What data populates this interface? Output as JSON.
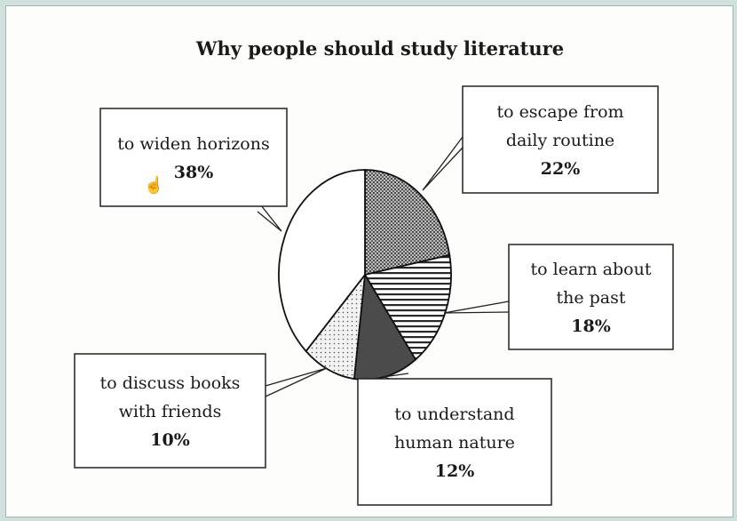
{
  "chart_data": {
    "type": "pie",
    "title": "Why people should study literature",
    "slices": [
      {
        "label_lines": [
          "to escape from",
          "daily routine"
        ],
        "value": 22,
        "value_label": "22%",
        "pattern": "dots-dense"
      },
      {
        "label_lines": [
          "to learn about",
          "the past"
        ],
        "value": 18,
        "value_label": "18%",
        "pattern": "hstripes"
      },
      {
        "label_lines": [
          "to understand",
          "human nature"
        ],
        "value": 12,
        "value_label": "12%",
        "pattern": "dark"
      },
      {
        "label_lines": [
          "to discuss books",
          "with friends"
        ],
        "value": 10,
        "value_label": "10%",
        "pattern": "dots-sparse"
      },
      {
        "label_lines": [
          "to widen horizons"
        ],
        "value": 38,
        "value_label": "38%",
        "pattern": "white"
      }
    ]
  }
}
